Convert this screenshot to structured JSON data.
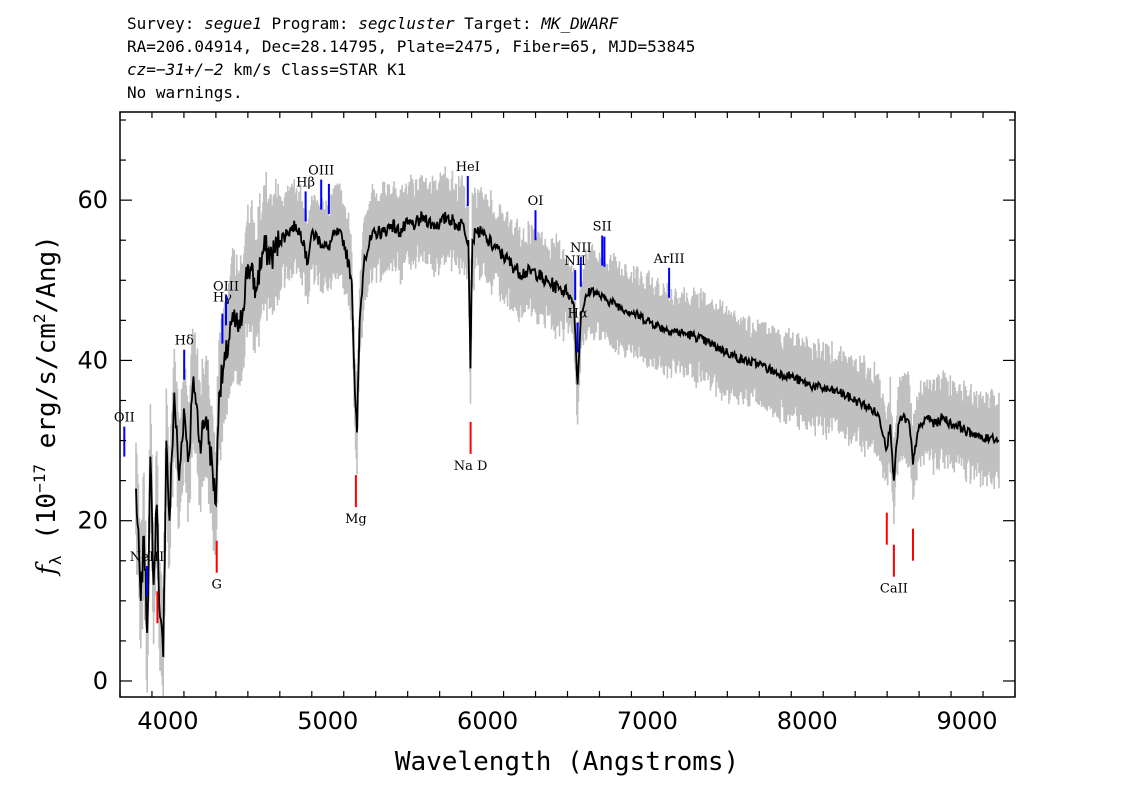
{
  "header": {
    "line1": {
      "survey_label": "Survey: ",
      "survey": "segue1",
      "program_label": " Program: ",
      "program": "segcluster",
      "target_label": " Target: ",
      "target": "MK_DWARF"
    },
    "line2": "RA=206.04914, Dec=28.14795, Plate=2475, Fiber=65, MJD=53845",
    "line3": {
      "cz": "cz=−31+/−2",
      "rest": " km/s Class=STAR K1"
    },
    "line4": "No warnings."
  },
  "chart_data": {
    "type": "line",
    "xlabel": "Wavelength (Angstroms)",
    "ylabel": "fλ (10⁻¹⁷ erg/s/cm²/Ang)",
    "xlim": [
      3700,
      9300
    ],
    "ylim": [
      -2,
      71
    ],
    "x_ticks": [
      4000,
      5000,
      6000,
      7000,
      8000,
      9000
    ],
    "y_ticks": [
      0,
      20,
      40,
      60
    ],
    "colors": {
      "flux": "#000000",
      "error": "#c0c0c0",
      "emission": "#0000ff",
      "absorption": "#ff0000"
    },
    "series": [
      {
        "x": [
          3800,
          3830,
          3850,
          3870,
          3890,
          3910,
          3930,
          3950,
          3970,
          3990,
          4010,
          4040,
          4070,
          4100,
          4130,
          4160,
          4200,
          4240,
          4280,
          4300,
          4320,
          4360,
          4400,
          4450,
          4500,
          4550,
          4600,
          4650,
          4700,
          4750,
          4800,
          4850,
          4870,
          4900,
          4950,
          5000,
          5050,
          5100,
          5150,
          5170,
          5183,
          5200,
          5230,
          5270,
          5300,
          5350,
          5400,
          5450,
          5500,
          5550,
          5600,
          5650,
          5700,
          5750,
          5800,
          5850,
          5880,
          5893,
          5905,
          5930,
          5960,
          6000,
          6050,
          6100,
          6150,
          6200,
          6250,
          6300,
          6350,
          6400,
          6450,
          6500,
          6540,
          6563,
          6585,
          6620,
          6650,
          6700,
          6750,
          6800,
          6900,
          7000,
          7100,
          7200,
          7300,
          7400,
          7500,
          7600,
          7700,
          7800,
          7900,
          8000,
          8100,
          8200,
          8300,
          8400,
          8450,
          8498,
          8520,
          8542,
          8570,
          8600,
          8640,
          8662,
          8690,
          8750,
          8800,
          8850,
          8900,
          8950,
          9000,
          9050,
          9100,
          9150,
          9200
        ],
        "y": [
          24,
          10,
          18,
          6,
          28,
          12,
          22,
          8,
          3,
          30,
          20,
          36,
          25,
          34,
          28,
          38,
          30,
          33,
          26,
          22,
          36,
          40,
          45,
          44,
          52,
          49,
          54,
          53,
          55,
          56,
          57,
          55,
          52,
          56,
          55,
          54,
          56,
          55,
          50,
          36,
          31,
          45,
          53,
          55,
          56,
          56,
          57,
          56,
          57,
          57,
          58,
          57,
          57,
          58,
          57,
          57,
          55,
          39,
          55,
          56,
          56,
          55,
          54,
          53,
          52,
          51,
          51,
          51,
          50,
          49.5,
          49,
          48.5,
          47,
          37,
          46,
          48,
          49,
          48,
          47.5,
          47,
          46,
          45,
          44,
          43.5,
          43,
          42,
          41,
          40,
          39.5,
          38.5,
          38,
          37,
          36.5,
          36,
          35,
          34,
          33,
          29,
          32,
          25,
          32,
          33,
          32,
          27,
          31,
          33,
          32,
          33,
          32,
          32,
          31,
          31,
          30,
          30.5,
          30
        ]
      }
    ],
    "lines": [
      {
        "name": "OII",
        "wl": 3727,
        "kind": "emission"
      },
      {
        "name": "NeIII",
        "wl": 3869,
        "kind": "emission"
      },
      {
        "name": "Hδ",
        "wl": 4102,
        "kind": "emission"
      },
      {
        "name": "Hγ",
        "wl": 4341,
        "kind": "emission"
      },
      {
        "name": "OIII",
        "wl": 4363,
        "kind": "emission"
      },
      {
        "name": "Hβ",
        "wl": 4861,
        "kind": "emission"
      },
      {
        "name": "OIII",
        "wl": 4959,
        "kind": "emission"
      },
      {
        "name": "",
        "wl": 5007,
        "kind": "emission"
      },
      {
        "name": "HeI",
        "wl": 5876,
        "kind": "emission"
      },
      {
        "name": "OI",
        "wl": 6300,
        "kind": "emission"
      },
      {
        "name": "NII",
        "wl": 6548,
        "kind": "emission"
      },
      {
        "name": "Hα",
        "wl": 6563,
        "kind": "emission"
      },
      {
        "name": "NII",
        "wl": 6583,
        "kind": "emission"
      },
      {
        "name": "SII",
        "wl": 6717,
        "kind": "emission"
      },
      {
        "name": "",
        "wl": 6731,
        "kind": "emission"
      },
      {
        "name": "ArIII",
        "wl": 7136,
        "kind": "emission"
      },
      {
        "name": "",
        "wl": 3934,
        "kind": "absorption"
      },
      {
        "name": "",
        "wl": 3969,
        "kind": "absorption"
      },
      {
        "name": "G",
        "wl": 4305,
        "kind": "absorption"
      },
      {
        "name": "Mg",
        "wl": 5176,
        "kind": "absorption"
      },
      {
        "name": "Na D",
        "wl": 5894,
        "kind": "absorption"
      },
      {
        "name": "",
        "wl": 8498,
        "kind": "absorption"
      },
      {
        "name": "CaII",
        "wl": 8542,
        "kind": "absorption"
      },
      {
        "name": "",
        "wl": 8662,
        "kind": "absorption"
      }
    ]
  }
}
